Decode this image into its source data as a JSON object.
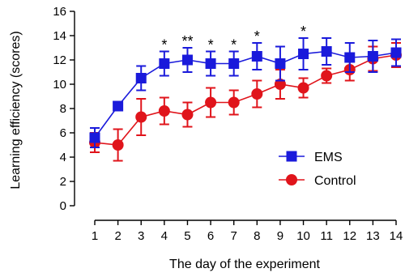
{
  "chart_data": {
    "type": "line",
    "xlabel": "The day of the experiment",
    "ylabel": "Learning efficiency (scores)",
    "ylim": [
      0,
      16
    ],
    "yticks": [
      0,
      2,
      4,
      6,
      8,
      10,
      12,
      14,
      16
    ],
    "x": [
      1,
      2,
      3,
      4,
      5,
      6,
      7,
      8,
      9,
      10,
      11,
      12,
      13,
      14
    ],
    "legend_position": "center-right",
    "grid": false,
    "series": [
      {
        "name": "EMS",
        "color": "#1a1adb",
        "marker": "square",
        "values": [
          5.6,
          8.2,
          10.5,
          11.7,
          12.0,
          11.7,
          11.7,
          12.3,
          11.7,
          12.5,
          12.7,
          12.2,
          12.3,
          12.6
        ],
        "errors": [
          0.8,
          0.3,
          1.0,
          1.0,
          1.0,
          1.0,
          1.0,
          1.1,
          1.4,
          1.3,
          1.1,
          1.2,
          1.3,
          1.1
        ]
      },
      {
        "name": "Control",
        "color": "#e0141b",
        "marker": "circle",
        "values": [
          5.2,
          5.0,
          7.3,
          7.8,
          7.5,
          8.5,
          8.5,
          9.2,
          10.0,
          9.7,
          10.7,
          11.2,
          12.1,
          12.4
        ],
        "errors": [
          0.8,
          1.3,
          1.5,
          1.1,
          1.0,
          1.2,
          1.0,
          1.1,
          1.2,
          0.8,
          0.6,
          0.9,
          1.0,
          1.0
        ]
      }
    ],
    "annotations": [
      {
        "x": 4,
        "text": "*"
      },
      {
        "x": 5,
        "text": "**"
      },
      {
        "x": 6,
        "text": "*"
      },
      {
        "x": 7,
        "text": "*"
      },
      {
        "x": 8,
        "text": "*"
      },
      {
        "x": 10,
        "text": "*"
      }
    ]
  }
}
